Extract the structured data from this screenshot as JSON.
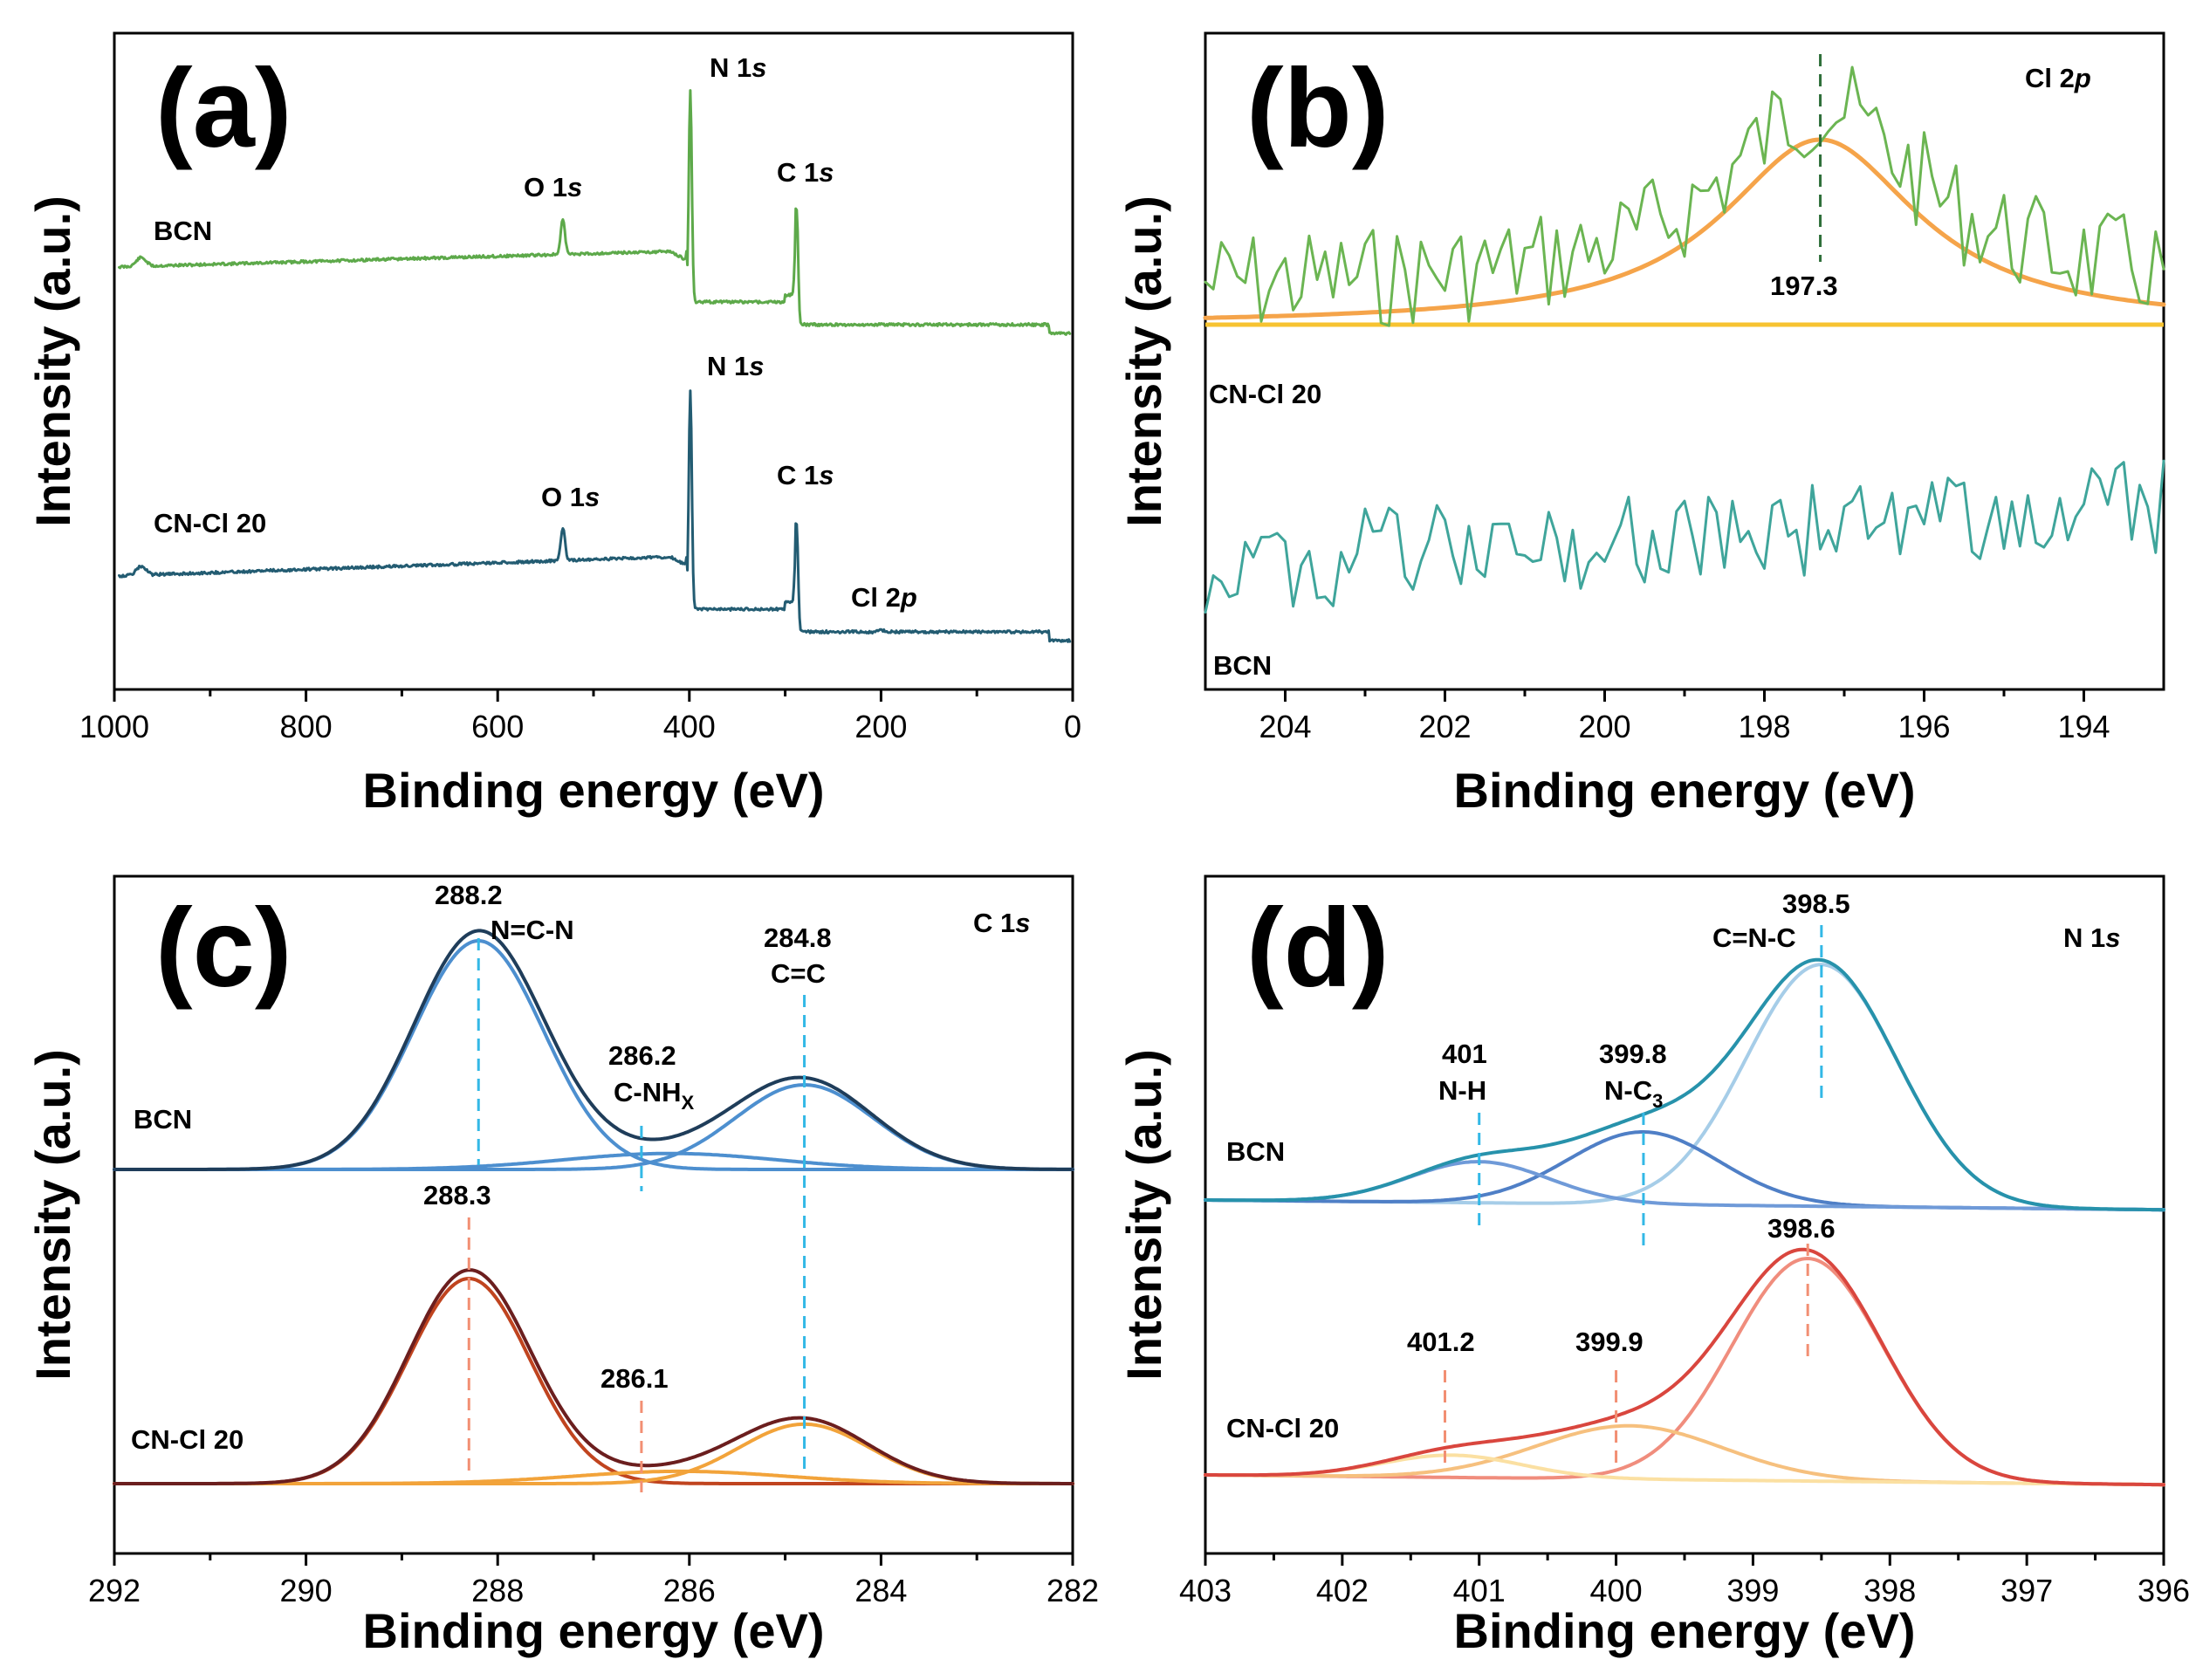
{
  "figure": {
    "colors": {
      "bcn_survey": "#5da94a",
      "cncl_survey": "#235c72",
      "b_green": "#6bb552",
      "b_orange": "#f5a44a",
      "b_baseline": "#f7c331",
      "b_teal": "#3fa59b",
      "c_bcn_env": "#1f3d5a",
      "c_bcn_comp": "#4d8fcf",
      "c_cncl_env": "#6b1e1e",
      "c_cncl_comp1": "#c0441f",
      "c_cncl_comp2": "#f2a33a",
      "d_bcn_env": "#2792ab",
      "d_bcn_c1": "#a6cde8",
      "d_bcn_c2": "#4f7fc6",
      "d_bcn_c3": "#6f9ad8",
      "d_cncl_env": "#d9463e",
      "d_cncl_c1": "#f08d7d",
      "d_cncl_c2": "#f6c07e",
      "d_cncl_c3": "#fbe0a2",
      "dash_blue": "#33b8e6",
      "dash_orange": "#f28f73"
    }
  },
  "chart_data": [
    {
      "panel": "(a)",
      "type": "line",
      "title": "",
      "xlabel": "Binding energy (eV)",
      "ylabel": "Intensity (a.u.)",
      "xlim": [
        1000,
        0
      ],
      "xticks": [
        "1000",
        "800",
        "600",
        "400",
        "200",
        "0"
      ],
      "grid": false,
      "samples": [
        "BCN",
        "CN-Cl 20"
      ],
      "annotations": {
        "bcn": [
          "O 1s",
          "N 1s",
          "C 1s"
        ],
        "cncl": [
          "O 1s",
          "N 1s",
          "C 1s",
          "Cl 2p"
        ]
      },
      "peaks_eV": {
        "O 1s": 532,
        "N 1s": 399,
        "C 1s": 288,
        "Cl 2p": 200
      },
      "series": [
        {
          "name": "BCN",
          "relative_peak_heights": {
            "O 1s": 0.08,
            "N 1s": 0.55,
            "C 1s": 0.18
          }
        },
        {
          "name": "CN-Cl 20",
          "relative_peak_heights": {
            "O 1s": 0.08,
            "N 1s": 0.55,
            "C 1s": 0.25
          }
        }
      ]
    },
    {
      "panel": "(b)",
      "type": "line",
      "title": "Cl 2p",
      "xlabel": "Binding energy (eV)",
      "ylabel": "Intensity (a.u.)",
      "xlim": [
        205,
        193
      ],
      "xticks": [
        "204",
        "202",
        "200",
        "198",
        "196",
        "194"
      ],
      "grid": false,
      "samples": [
        "CN-Cl 20",
        "BCN"
      ],
      "peak_label": "197.3",
      "series": [
        {
          "name": "CN-Cl 20",
          "kind": "noisy spectrum"
        },
        {
          "name": "CN-Cl 20 fit",
          "center": 197.3,
          "fwhm": 3.0
        },
        {
          "name": "BCN",
          "kind": "noisy spectrum, no Cl peak"
        }
      ]
    },
    {
      "panel": "(c)",
      "type": "line",
      "title": "C 1s",
      "xlabel": "Binding energy (eV)",
      "ylabel": "Intensity (a.u.)",
      "xlim": [
        292,
        282
      ],
      "xticks": [
        "292",
        "290",
        "288",
        "286",
        "284",
        "282"
      ],
      "grid": false,
      "samples": [
        "BCN",
        "CN-Cl 20"
      ],
      "peak_labels": {
        "bcn_288": "288.2",
        "bcn_288_name": "N=C-N",
        "bcn_286": "286.2",
        "bcn_286_name": "C-NH",
        "bcn_286_sub": "X",
        "bcn_284": "284.8",
        "bcn_284_name": "C=C",
        "cncl_288": "288.3",
        "cncl_286": "286.1"
      },
      "series": [
        {
          "name": "BCN",
          "components": [
            {
              "center": 288.2,
              "fwhm": 1.6,
              "rel_height": 1.0
            },
            {
              "center": 286.2,
              "fwhm": 2.6,
              "rel_height": 0.07
            },
            {
              "center": 284.8,
              "fwhm": 1.7,
              "rel_height": 0.37
            }
          ]
        },
        {
          "name": "CN-Cl 20",
          "components": [
            {
              "center": 288.3,
              "fwhm": 1.5,
              "rel_height": 1.0
            },
            {
              "center": 286.1,
              "fwhm": 2.6,
              "rel_height": 0.06
            },
            {
              "center": 284.8,
              "fwhm": 1.6,
              "rel_height": 0.29
            }
          ]
        }
      ]
    },
    {
      "panel": "(d)",
      "type": "line",
      "title": "N 1s",
      "xlabel": "Binding energy (eV)",
      "ylabel": "Intensity (a.u.)",
      "xlim": [
        403,
        396
      ],
      "xticks": [
        "403",
        "402",
        "401",
        "400",
        "399",
        "398",
        "397",
        "396"
      ],
      "grid": false,
      "samples": [
        "BCN",
        "CN-Cl 20"
      ],
      "peak_labels": {
        "bcn_401": "401",
        "bcn_401_name": "N-H",
        "bcn_399": "399.8",
        "bcn_399_name": "N-C",
        "bcn_399_sub": "3",
        "bcn_398": "398.5",
        "bcn_398_name": "C=N-C",
        "cncl_401": "401.2",
        "cncl_399": "399.9",
        "cncl_398": "398.6"
      },
      "series": [
        {
          "name": "BCN",
          "components": [
            {
              "center": 398.5,
              "fwhm": 1.3,
              "rel_height": 1.0
            },
            {
              "center": 399.8,
              "fwhm": 1.3,
              "rel_height": 0.3
            },
            {
              "center": 401.0,
              "fwhm": 1.2,
              "rel_height": 0.17
            }
          ]
        },
        {
          "name": "CN-Cl 20",
          "components": [
            {
              "center": 398.6,
              "fwhm": 1.3,
              "rel_height": 1.0
            },
            {
              "center": 399.9,
              "fwhm": 1.6,
              "rel_height": 0.24
            },
            {
              "center": 401.2,
              "fwhm": 1.2,
              "rel_height": 0.1
            }
          ]
        }
      ]
    }
  ]
}
